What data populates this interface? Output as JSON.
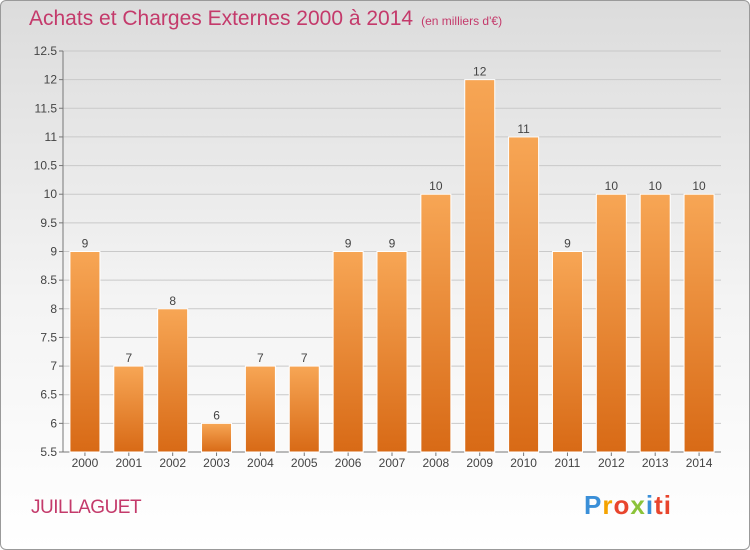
{
  "chart_data": {
    "type": "bar",
    "title": "Achats et Charges Externes 2000 à 2014",
    "subtitle": "(en milliers d'€)",
    "categories": [
      "2000",
      "2001",
      "2002",
      "2003",
      "2004",
      "2005",
      "2006",
      "2007",
      "2008",
      "2009",
      "2010",
      "2011",
      "2012",
      "2013",
      "2014"
    ],
    "values": [
      9,
      7,
      8,
      6,
      7,
      7,
      9,
      9,
      10,
      12,
      11,
      9,
      10,
      10,
      10
    ],
    "data_labels": [
      "9",
      "7",
      "8",
      "6",
      "7",
      "7",
      "9",
      "9",
      "10",
      "12",
      "11",
      "9",
      "10",
      "10",
      "10"
    ],
    "y_ticks": [
      5.5,
      6,
      6.5,
      7,
      7.5,
      8,
      8.5,
      9,
      9.5,
      10,
      10.5,
      11,
      11.5,
      12,
      12.5
    ],
    "y_tick_labels": [
      "5.5",
      "6",
      "6.5",
      "7",
      "7.5",
      "8",
      "8.5",
      "9",
      "9.5",
      "10",
      "10.5",
      "11",
      "11.5",
      "12",
      "12.5"
    ],
    "ylim": [
      5.5,
      12.5
    ],
    "xlabel": "",
    "ylabel": "",
    "grid": true,
    "bar_color": "#f0913a"
  },
  "footer": {
    "place_name": "JUILLAGUET",
    "logo_letters": [
      "P",
      "r",
      "o",
      "x",
      "i",
      "ti"
    ]
  }
}
